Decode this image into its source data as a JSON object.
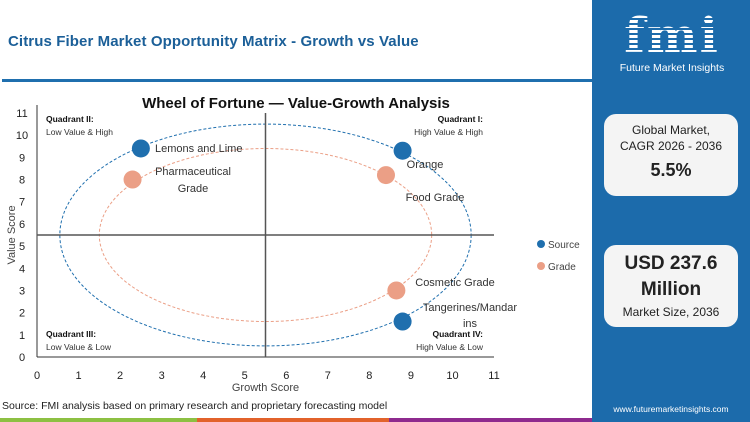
{
  "header": {
    "title": "Citrus Fiber Market  Opportunity Matrix - Growth vs Value"
  },
  "source": "Source: FMI analysis based on primary research and proprietary forecasting model",
  "side_panel": {
    "logo_text": "fmi",
    "logo_subtitle": "Future Market Insights",
    "cagr_label_1": "Global Market,",
    "cagr_label_2": "CAGR 2026 - 2036",
    "cagr_value": "5.5%",
    "size_value_1": "USD 237.6",
    "size_value_2": "Million",
    "size_label": "Market Size, 2036",
    "url": "www.futuremarketinsights.com"
  },
  "colors": {
    "source": "#1f6fae",
    "grade": "#eb9f86",
    "brand_blue": "#1c6bab",
    "bar_green": "#8dc043",
    "bar_orange": "#e2622b",
    "bar_purple": "#8e2a8e"
  },
  "chart_data": {
    "type": "scatter",
    "title": "Wheel of Fortune — Value-Growth  Analysis",
    "xlabel": "Growth Score",
    "ylabel": "Value Score",
    "xlim": [
      0,
      11
    ],
    "ylim": [
      0,
      11
    ],
    "xticks": [
      "0",
      "1",
      "2",
      "3",
      "4",
      "5",
      "6",
      "7",
      "8",
      "9",
      "10",
      "11"
    ],
    "yticks": [
      "0",
      "1",
      "2",
      "3",
      "4",
      "5",
      "6",
      "7",
      "8",
      "9",
      "10",
      "11"
    ],
    "divider": {
      "x": 5.5,
      "y": 5.5
    },
    "legend": {
      "position": "right",
      "entries": [
        "Source",
        "Grade"
      ]
    },
    "quadrants": [
      {
        "name": "Quadrant II:",
        "desc": "Low Value & High"
      },
      {
        "name": "Quadrant I:",
        "desc": "High Value & High"
      },
      {
        "name": "Quadrant III:",
        "desc": "Low Value & Low"
      },
      {
        "name": "Quadrant IV:",
        "desc": "High Value & Low"
      }
    ],
    "series": [
      {
        "name": "Source",
        "points": [
          {
            "label": "Lemons and Lime",
            "x": 2.5,
            "y": 9.4
          },
          {
            "label": "Orange",
            "x": 8.8,
            "y": 9.3
          },
          {
            "label": "Tangerines/Mandarins",
            "x": 8.8,
            "y": 1.6
          }
        ]
      },
      {
        "name": "Grade",
        "points": [
          {
            "label": "Pharmaceutical Grade",
            "x": 2.3,
            "y": 8.0
          },
          {
            "label": "Food Grade",
            "x": 8.4,
            "y": 8.2
          },
          {
            "label": "Cosmetic Grade",
            "x": 8.65,
            "y": 3.0
          }
        ]
      }
    ]
  }
}
